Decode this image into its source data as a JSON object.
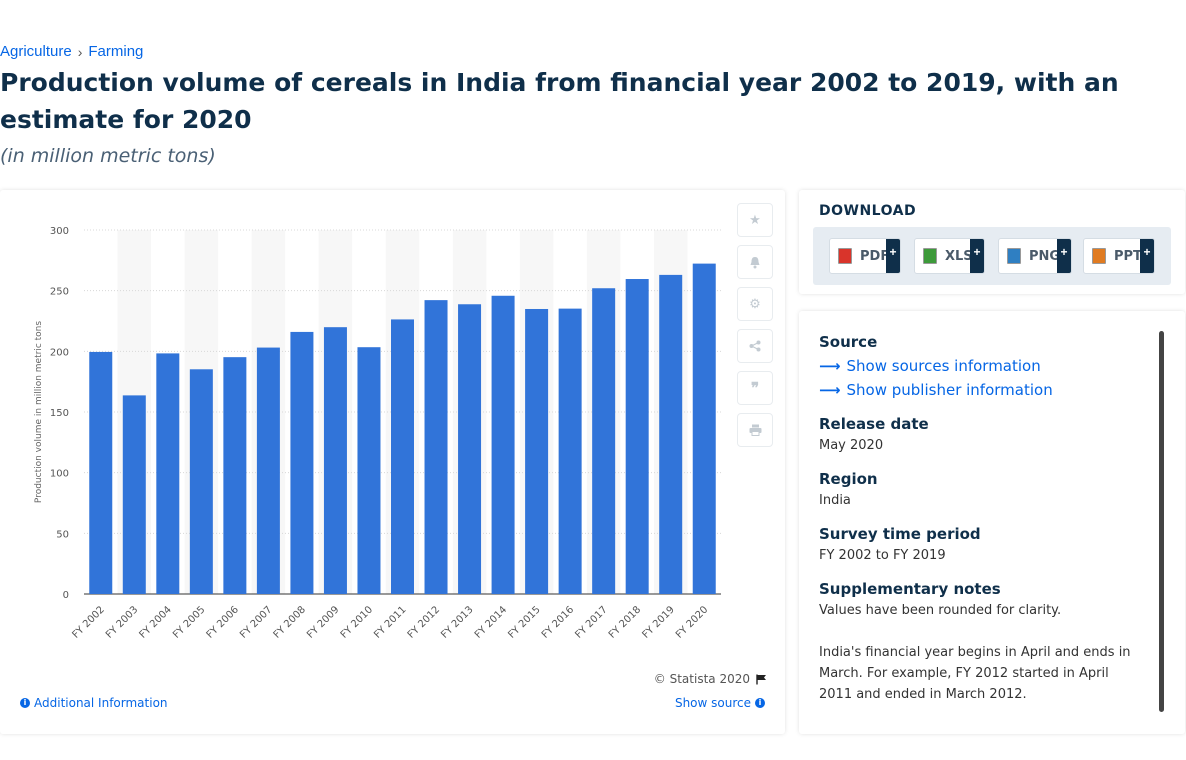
{
  "breadcrumb": {
    "items": [
      "Agriculture",
      "Farming"
    ],
    "separator": "›"
  },
  "header": {
    "title": "Production volume of cereals in India from financial year 2002 to 2019, with an estimate for 2020",
    "subtitle": "(in million metric tons)"
  },
  "chart_data": {
    "type": "bar",
    "categories": [
      "FY 2002",
      "FY 2003",
      "FY 2004",
      "FY 2005",
      "FY 2006",
      "FY 2007",
      "FY 2008",
      "FY 2009",
      "FY 2010",
      "FY 2011",
      "FY 2012",
      "FY 2013",
      "FY 2014",
      "FY 2015",
      "FY 2016",
      "FY 2017",
      "FY 2018",
      "FY 2019",
      "FY 2020"
    ],
    "values": [
      199.5,
      163.7,
      198.3,
      185.2,
      195.2,
      203.1,
      216.0,
      219.9,
      203.4,
      226.3,
      242.2,
      238.8,
      245.8,
      234.9,
      235.2,
      252.0,
      259.6,
      263.0,
      272.3
    ],
    "ylabel": "Production volume in million metric tons",
    "yticks": [
      0,
      50,
      100,
      150,
      200,
      250,
      300
    ],
    "ylim": [
      0,
      300
    ],
    "bar_color": "#3174d9",
    "grid": true
  },
  "chart_footer": {
    "copyright": "© Statista 2020",
    "additional_info": "Additional Information",
    "show_source": "Show source"
  },
  "toolbar": {
    "icons": [
      "star-icon",
      "bell-icon",
      "gear-icon",
      "share-icon",
      "quote-icon",
      "print-icon"
    ]
  },
  "download": {
    "title": "DOWNLOAD",
    "buttons": [
      {
        "label": "PDF",
        "color": "#d9342b"
      },
      {
        "label": "XLS",
        "color": "#3d9a3a"
      },
      {
        "label": "PNG",
        "color": "#2f7fc2"
      },
      {
        "label": "PPT",
        "color": "#e07b21"
      }
    ],
    "plus": "+"
  },
  "info": {
    "source_heading": "Source",
    "show_sources": "Show sources information",
    "show_publisher": "Show publisher information",
    "release_heading": "Release date",
    "release_value": "May 2020",
    "region_heading": "Region",
    "region_value": "India",
    "survey_heading": "Survey time period",
    "survey_value": "FY 2002 to FY 2019",
    "notes_heading": "Supplementary notes",
    "notes_value1": "Values have been rounded for clarity.",
    "notes_value2": "India's financial year begins in April and ends in March. For example, FY 2012 started in April 2011 and ended in March 2012."
  }
}
